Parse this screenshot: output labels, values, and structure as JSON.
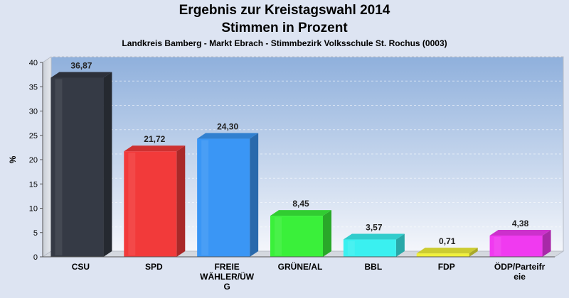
{
  "header": {
    "title_line1": "Ergebnis zur Kreistagswahl 2014",
    "title_line2": "Stimmen in Prozent",
    "subtitle": "Landkreis Bamberg - Markt Ebrach - Stimmbezirk Volksschule St. Rochus (0003)"
  },
  "chart_data": {
    "type": "bar",
    "title": "Ergebnis zur Kreistagswahl 2014 / Stimmen in Prozent",
    "subtitle": "Landkreis Bamberg - Markt Ebrach - Stimmbezirk Volksschule St. Rochus (0003)",
    "ylabel": "%",
    "ylim": [
      0,
      40
    ],
    "yticks": [
      0,
      5,
      10,
      15,
      20,
      25,
      30,
      35,
      40
    ],
    "grid": true,
    "categories": [
      "CSU",
      "SPD",
      "FREIE WÄHLER/ÜWG",
      "GRÜNE/AL",
      "BBL",
      "FDP",
      "ÖDP/Parteifreie"
    ],
    "category_label_lines": [
      [
        "CSU"
      ],
      [
        "SPD"
      ],
      [
        "FREIE",
        "WÄHLER/ÜW",
        "G"
      ],
      [
        "GRÜNE/AL"
      ],
      [
        "BBL"
      ],
      [
        "FDP"
      ],
      [
        "ÖDP/Parteifr",
        "eie"
      ]
    ],
    "values": [
      36.87,
      21.72,
      24.3,
      8.45,
      3.57,
      0.71,
      4.38
    ],
    "value_labels": [
      "36,87",
      "21,72",
      "24,30",
      "8,45",
      "3,57",
      "0,71",
      "4,38"
    ],
    "colors": [
      "#353a45",
      "#f23a3a",
      "#3a96f5",
      "#3af03a",
      "#3af0f0",
      "#f0f03a",
      "#f03af0"
    ]
  }
}
